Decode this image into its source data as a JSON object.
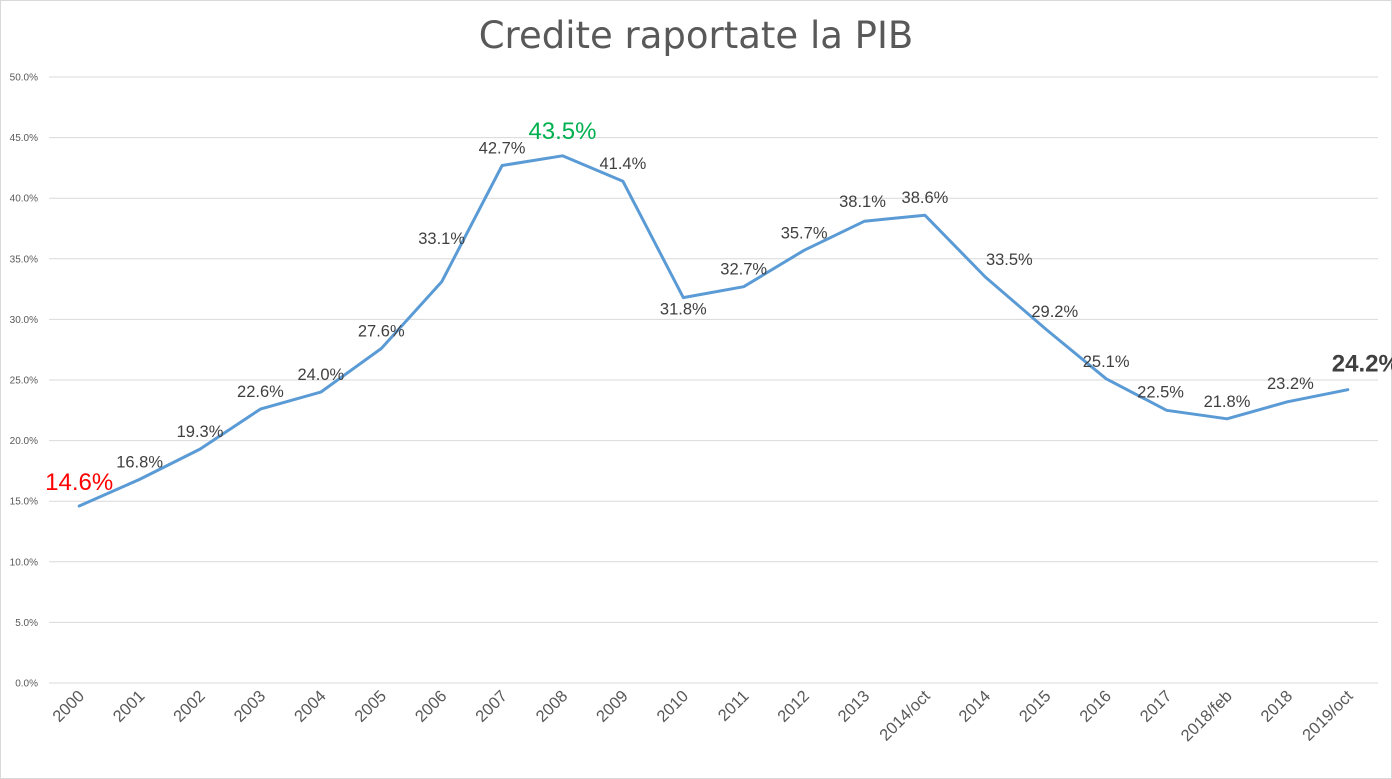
{
  "chart_data": {
    "type": "line",
    "title": "Credite raportate la PIB",
    "categories": [
      "2000",
      "2001",
      "2002",
      "2003",
      "2004",
      "2005",
      "2006",
      "2007",
      "2008",
      "2009",
      "2010",
      "2011",
      "2012",
      "2013",
      "2014/oct",
      "2014",
      "2015",
      "2016",
      "2017",
      "2018/feb",
      "2018",
      "2019/oct"
    ],
    "series": [
      {
        "values": [
          14.6,
          16.8,
          19.3,
          22.6,
          24.0,
          27.6,
          33.1,
          42.7,
          43.5,
          41.4,
          31.8,
          32.7,
          35.7,
          38.1,
          38.6,
          33.5,
          29.2,
          25.1,
          22.5,
          21.8,
          23.2,
          24.2
        ],
        "labels": [
          "14.6%",
          "16.8%",
          "19.3%",
          "22.6%",
          "24.0%",
          "27.6%",
          "33.1%",
          "42.7%",
          "43.5%",
          "41.4%",
          "31.8%",
          "32.7%",
          "35.7%",
          "38.1%",
          "38.6%",
          "33.5%",
          "29.2%",
          "25.1%",
          "22.5%",
          "21.8%",
          "23.2%",
          "24.2%"
        ],
        "color": "#5b9bd5"
      }
    ],
    "highlights": {
      "max_color": "#00b050",
      "min_color": "#ff0000",
      "last_color": "#404040"
    },
    "yticks": [
      "0.0%",
      "5.0%",
      "10.0%",
      "15.0%",
      "20.0%",
      "25.0%",
      "30.0%",
      "35.0%",
      "40.0%",
      "45.0%",
      "50.0%"
    ],
    "ylim": [
      0,
      50
    ],
    "grid": true,
    "legend": "none"
  }
}
